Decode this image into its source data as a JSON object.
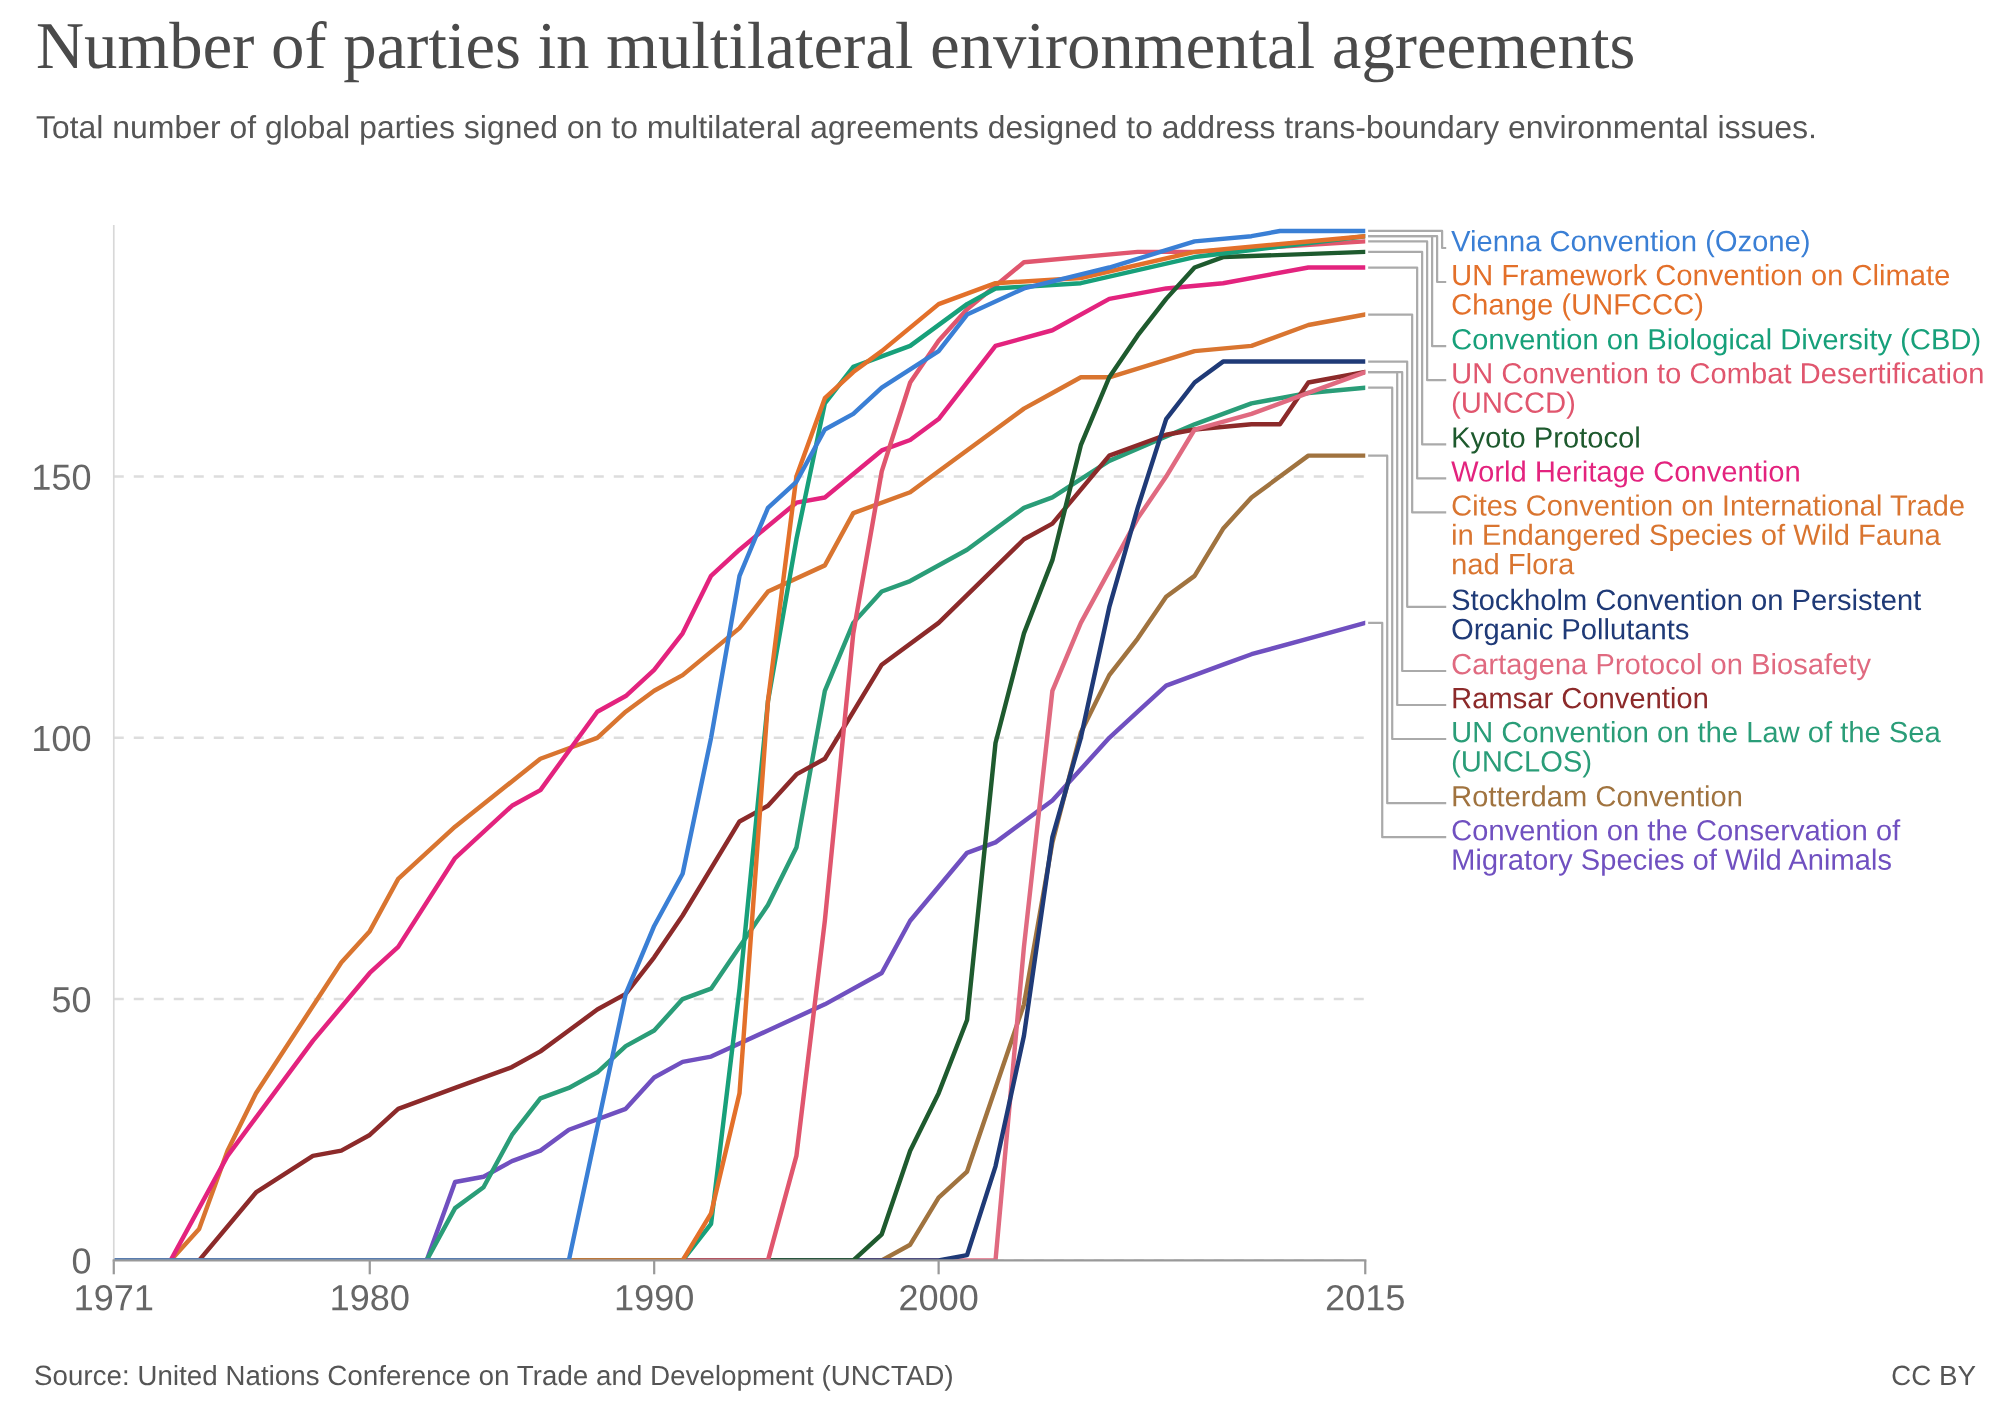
{
  "chart_data": {
    "type": "line",
    "title": "Number of parties in multilateral environmental agreements",
    "subtitle": "Total number of global parties signed on to multilateral agreements designed to address trans-boundary environmental issues.",
    "xlim": [
      1971,
      2015
    ],
    "xticks": [
      1971,
      1980,
      1990,
      2000,
      2015
    ],
    "ylim": [
      0,
      198
    ],
    "yticks": [
      0,
      50,
      100,
      150
    ],
    "grid": "y",
    "legend": "right",
    "annotations": [
      "Source: United Nations Conference on Trade and Development (UNCTAD)",
      "CC BY"
    ],
    "series": [
      {
        "name": "Vienna Convention (Ozone)",
        "color": "#3a7fd5",
        "x": [
          1971,
          1987,
          1989,
          1990,
          1991,
          1992,
          1993,
          1994,
          1995,
          1996,
          1997,
          1998,
          2000,
          2001,
          2003,
          2006,
          2009,
          2011,
          2012,
          2015
        ],
        "values": [
          0,
          0,
          51,
          64,
          74,
          100,
          131,
          144,
          149,
          159,
          162,
          167,
          174,
          181,
          186,
          190,
          195,
          196,
          197,
          197
        ]
      },
      {
        "name": "UN Framework Convention on Climate Change (UNFCCC)",
        "color": "#e3702a",
        "x": [
          1971,
          1991,
          1992,
          1993,
          1994,
          1995,
          1996,
          1997,
          1998,
          2000,
          2001,
          2002,
          2005,
          2009,
          2015
        ],
        "values": [
          0,
          0,
          9,
          32,
          107,
          150,
          165,
          170,
          174,
          183,
          185,
          187,
          188,
          193,
          196
        ]
      },
      {
        "name": "Convention on Biological Diversity (CBD)",
        "color": "#17a07a",
        "x": [
          1971,
          1991,
          1992,
          1993,
          1994,
          1995,
          1996,
          1997,
          1999,
          2001,
          2002,
          2005,
          2009,
          2015
        ],
        "values": [
          0,
          0,
          7,
          52,
          107,
          138,
          164,
          171,
          175,
          183,
          186,
          187,
          192,
          196
        ]
      },
      {
        "name": "UN Convention to Combat Desertification (UNCCD)",
        "color": "#e0566e",
        "x": [
          1971,
          1994,
          1995,
          1996,
          1997,
          1998,
          1999,
          2000,
          2001,
          2003,
          2007,
          2009,
          2015
        ],
        "values": [
          0,
          0,
          20,
          65,
          120,
          151,
          168,
          176,
          182,
          191,
          193,
          193,
          195
        ]
      },
      {
        "name": "Kyoto Protocol",
        "color": "#1e5a2e",
        "x": [
          1971,
          1997,
          1998,
          1999,
          2000,
          2001,
          2002,
          2003,
          2004,
          2005,
          2006,
          2007,
          2008,
          2009,
          2010,
          2015
        ],
        "values": [
          0,
          0,
          5,
          21,
          32,
          46,
          99,
          120,
          134,
          156,
          169,
          177,
          184,
          190,
          192,
          193
        ]
      },
      {
        "name": "World Heritage Convention",
        "color": "#e3237e",
        "x": [
          1971,
          1973,
          1975,
          1978,
          1980,
          1981,
          1983,
          1985,
          1986,
          1988,
          1989,
          1990,
          1991,
          1992,
          1993,
          1995,
          1996,
          1998,
          1999,
          2000,
          2002,
          2004,
          2006,
          2008,
          2010,
          2013,
          2015
        ],
        "values": [
          0,
          0,
          20,
          42,
          55,
          60,
          77,
          87,
          90,
          105,
          108,
          113,
          120,
          131,
          136,
          145,
          146,
          155,
          157,
          161,
          175,
          178,
          184,
          186,
          187,
          190,
          190
        ]
      },
      {
        "name": "Cites Convention on International Trade in Endangered Species of Wild Fauna nad Flora",
        "color": "#d97530",
        "x": [
          1971,
          1973,
          1974,
          1975,
          1976,
          1979,
          1980,
          1981,
          1983,
          1986,
          1987,
          1988,
          1989,
          1990,
          1991,
          1993,
          1994,
          1996,
          1997,
          1999,
          2000,
          2003,
          2004,
          2005,
          2006,
          2009,
          2011,
          2013,
          2015
        ],
        "values": [
          0,
          0,
          6,
          21,
          32,
          57,
          63,
          73,
          83,
          96,
          98,
          100,
          105,
          109,
          112,
          121,
          128,
          133,
          143,
          147,
          151,
          163,
          166,
          169,
          169,
          174,
          175,
          179,
          181
        ]
      },
      {
        "name": "Stockholm Convention on Persistent Organic Pollutants",
        "color": "#1f3a77",
        "x": [
          1971,
          2000,
          2001,
          2002,
          2003,
          2004,
          2005,
          2006,
          2007,
          2008,
          2009,
          2010,
          2015
        ],
        "values": [
          0,
          0,
          1,
          18,
          43,
          81,
          100,
          125,
          144,
          161,
          168,
          172,
          172
        ]
      },
      {
        "name": "Cartagena Protocol on Biosafety",
        "color": "#e06a80",
        "x": [
          1971,
          2002,
          2003,
          2004,
          2005,
          2006,
          2007,
          2008,
          2009,
          2011,
          2013,
          2015
        ],
        "values": [
          0,
          0,
          60,
          109,
          122,
          132,
          142,
          150,
          159,
          162,
          166,
          170
        ]
      },
      {
        "name": "Ramsar Convention",
        "color": "#8c2a2a",
        "x": [
          1971,
          1974,
          1976,
          1978,
          1979,
          1980,
          1981,
          1983,
          1985,
          1986,
          1987,
          1988,
          1989,
          1990,
          1991,
          1993,
          1994,
          1995,
          1996,
          1998,
          2000,
          2003,
          2004,
          2006,
          2008,
          2009,
          2011,
          2012,
          2013,
          2015
        ],
        "values": [
          0,
          0,
          13,
          20,
          21,
          24,
          29,
          33,
          37,
          40,
          44,
          48,
          51,
          58,
          66,
          84,
          87,
          93,
          96,
          114,
          122,
          138,
          141,
          154,
          158,
          159,
          160,
          160,
          168,
          170
        ]
      },
      {
        "name": "UN Convention on the Law of the Sea (UNCLOS)",
        "color": "#2a9d78",
        "x": [
          1971,
          1982,
          1983,
          1984,
          1985,
          1986,
          1987,
          1988,
          1989,
          1990,
          1991,
          1992,
          1994,
          1995,
          1996,
          1997,
          1998,
          1999,
          2001,
          2003,
          2004,
          2006,
          2009,
          2011,
          2013,
          2015
        ],
        "values": [
          0,
          0,
          10,
          14,
          24,
          31,
          33,
          36,
          41,
          44,
          50,
          52,
          68,
          79,
          109,
          122,
          128,
          130,
          136,
          144,
          146,
          153,
          160,
          164,
          166,
          167
        ]
      },
      {
        "name": "Rotterdam Convention",
        "color": "#a0733f",
        "x": [
          1971,
          1998,
          1999,
          2000,
          2001,
          2002,
          2003,
          2004,
          2005,
          2006,
          2007,
          2008,
          2009,
          2010,
          2011,
          2012,
          2013,
          2015
        ],
        "values": [
          0,
          0,
          3,
          12,
          17,
          33,
          49,
          80,
          101,
          112,
          119,
          127,
          131,
          140,
          146,
          150,
          154,
          154
        ]
      },
      {
        "name": "Convention on the Conservation of Migratory Species of Wild Animals",
        "color": "#7050c0",
        "x": [
          1971,
          1982,
          1983,
          1984,
          1985,
          1986,
          1987,
          1989,
          1990,
          1991,
          1992,
          1994,
          1996,
          1998,
          1999,
          2001,
          2002,
          2004,
          2006,
          2007,
          2008,
          2010,
          2011,
          2013,
          2015
        ],
        "values": [
          0,
          0,
          15,
          16,
          19,
          21,
          25,
          29,
          35,
          38,
          39,
          44,
          49,
          55,
          65,
          78,
          80,
          88,
          100,
          105,
          110,
          114,
          116,
          119,
          122
        ]
      }
    ]
  }
}
